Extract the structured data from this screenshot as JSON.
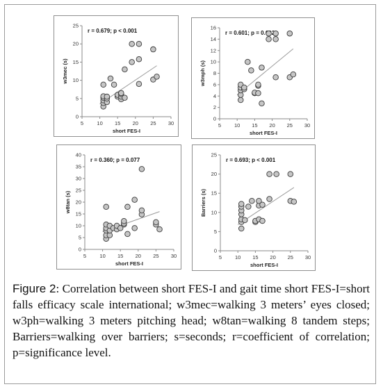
{
  "chart_data": [
    {
      "type": "scatter",
      "annotation": "r = 0.679; p < 0.001",
      "xlabel": "short FES-I",
      "ylabel": "w3mec (s)",
      "xlim": [
        5,
        30
      ],
      "ylim": [
        0,
        25
      ],
      "xticks": [
        5,
        10,
        15,
        20,
        25,
        30
      ],
      "yticks": [
        0,
        5,
        10,
        15,
        20,
        25
      ],
      "trendline": [
        [
          10,
          3.5
        ],
        [
          26,
          14
        ]
      ],
      "points": [
        [
          11,
          2.8
        ],
        [
          11,
          3.8
        ],
        [
          11,
          4.5
        ],
        [
          11,
          5.2
        ],
        [
          11,
          5.6
        ],
        [
          11,
          8.8
        ],
        [
          12,
          4
        ],
        [
          12,
          5
        ],
        [
          12,
          5.5
        ],
        [
          13,
          10.5
        ],
        [
          14,
          8.8
        ],
        [
          15,
          5.5
        ],
        [
          15,
          6
        ],
        [
          16,
          4.8
        ],
        [
          16,
          5.5
        ],
        [
          16,
          6.2
        ],
        [
          16,
          6.5
        ],
        [
          17,
          5.2
        ],
        [
          17,
          13
        ],
        [
          19,
          15
        ],
        [
          19,
          20
        ],
        [
          21,
          9
        ],
        [
          21,
          15.8
        ],
        [
          21,
          20
        ],
        [
          25,
          10.2
        ],
        [
          25,
          18.5
        ],
        [
          26,
          11
        ]
      ],
      "grid": false,
      "legend": "none"
    },
    {
      "type": "scatter",
      "annotation": "r = 0.601; p = 0.002",
      "xlabel": "short FES-I",
      "ylabel": "w3mph (s)",
      "xlim": [
        5,
        30
      ],
      "ylim": [
        0,
        16
      ],
      "xticks": [
        5,
        10,
        15,
        20,
        25,
        30
      ],
      "yticks": [
        0,
        2,
        4,
        6,
        8,
        10,
        12,
        14,
        16
      ],
      "trendline": [
        [
          10,
          4.2
        ],
        [
          26,
          12.3
        ]
      ],
      "points": [
        [
          11,
          3.3
        ],
        [
          11,
          4.2
        ],
        [
          11,
          5
        ],
        [
          11,
          5.5
        ],
        [
          11,
          6
        ],
        [
          12,
          5.2
        ],
        [
          12,
          5.5
        ],
        [
          13,
          10
        ],
        [
          14,
          8.5
        ],
        [
          15,
          4.5
        ],
        [
          15,
          4.6
        ],
        [
          16,
          4.5
        ],
        [
          16,
          5.8
        ],
        [
          16,
          6
        ],
        [
          17,
          2.7
        ],
        [
          17,
          9
        ],
        [
          19,
          14
        ],
        [
          19,
          15
        ],
        [
          21,
          7.3
        ],
        [
          21,
          14
        ],
        [
          21,
          15
        ],
        [
          25,
          7.3
        ],
        [
          25,
          15
        ],
        [
          26,
          7.8
        ]
      ],
      "grid": false,
      "legend": "none"
    },
    {
      "type": "scatter",
      "annotation": "r = 0.360; p = 0.077",
      "xlabel": "short FES-I",
      "ylabel": "w8tan (s)",
      "xlim": [
        5,
        30
      ],
      "ylim": [
        0,
        40
      ],
      "xticks": [
        5,
        10,
        15,
        20,
        25,
        30
      ],
      "yticks": [
        0,
        5,
        10,
        15,
        20,
        25,
        30,
        35,
        40
      ],
      "trendline": [
        [
          10,
          7.5
        ],
        [
          26,
          16
        ]
      ],
      "points": [
        [
          11,
          4.5
        ],
        [
          11,
          6
        ],
        [
          11,
          8
        ],
        [
          11,
          9
        ],
        [
          11,
          10.5
        ],
        [
          11,
          18
        ],
        [
          12,
          6
        ],
        [
          12,
          8
        ],
        [
          12,
          10
        ],
        [
          13,
          9
        ],
        [
          14,
          8.5
        ],
        [
          14,
          10
        ],
        [
          15,
          9
        ],
        [
          16,
          10.5
        ],
        [
          16,
          11
        ],
        [
          16,
          12
        ],
        [
          17,
          6.5
        ],
        [
          17,
          18
        ],
        [
          19,
          9
        ],
        [
          19,
          21
        ],
        [
          21,
          14.8
        ],
        [
          21,
          16.5
        ],
        [
          21,
          34
        ],
        [
          25,
          10.5
        ],
        [
          25,
          11.5
        ],
        [
          26,
          8.5
        ]
      ],
      "grid": false,
      "legend": "none"
    },
    {
      "type": "scatter",
      "annotation": "r = 0.693; p < 0.001",
      "xlabel": "short FES-I",
      "ylabel": "Barriers (s)",
      "xlim": [
        5,
        30
      ],
      "ylim": [
        0,
        25
      ],
      "xticks": [
        5,
        10,
        15,
        20,
        25,
        30
      ],
      "yticks": [
        0,
        5,
        10,
        15,
        20,
        25
      ],
      "trendline": [
        [
          10,
          6.8
        ],
        [
          26,
          16.5
        ]
      ],
      "points": [
        [
          11,
          5.8
        ],
        [
          11,
          7.5
        ],
        [
          11,
          8.2
        ],
        [
          11,
          9.5
        ],
        [
          11,
          10.5
        ],
        [
          11,
          11.5
        ],
        [
          11,
          12.2
        ],
        [
          12,
          8
        ],
        [
          13,
          11.5
        ],
        [
          14,
          13
        ],
        [
          15,
          7.5
        ],
        [
          15,
          7.8
        ],
        [
          16,
          8.2
        ],
        [
          16,
          11.8
        ],
        [
          16,
          13
        ],
        [
          17,
          7.8
        ],
        [
          17,
          12
        ],
        [
          19,
          13.5
        ],
        [
          19,
          20
        ],
        [
          21,
          20
        ],
        [
          25,
          13
        ],
        [
          25,
          20
        ],
        [
          26,
          12.8
        ]
      ],
      "grid": false,
      "legend": "none"
    }
  ],
  "caption": {
    "lead": "Figure 2",
    "text": ": Correlation between short FES-I and gait time short FES-I=short falls efficacy scale international; w3mec=walking 3 meters’ eyes closed; w3ph=walking 3 meters pitching head; w8tan=walking 8 tandem steps; Barriers=walking over barriers; s=seconds; r=coefficient of correlation; p=significance level."
  }
}
